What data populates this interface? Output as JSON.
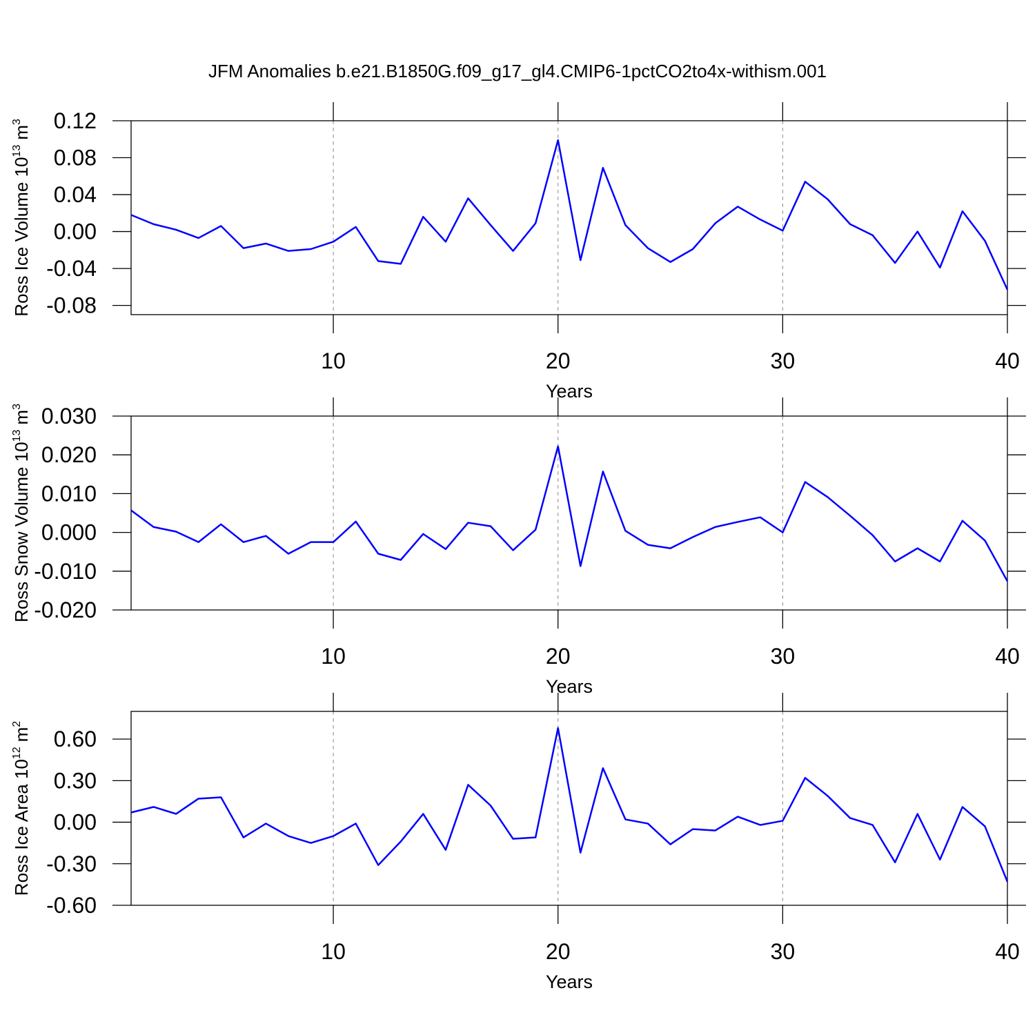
{
  "title": "JFM Anomalies b.e21.B1850G.f09_g17_gl4.CMIP6-1pctCO2to4x-withism.001",
  "chart_data": [
    {
      "type": "line",
      "ylabel": [
        "Ross Ice Volume 10",
        "13",
        "m",
        "3"
      ],
      "xlabel": "Years",
      "x": [
        1,
        2,
        3,
        4,
        5,
        6,
        7,
        8,
        9,
        10,
        11,
        12,
        13,
        14,
        15,
        16,
        17,
        18,
        19,
        20,
        21,
        22,
        23,
        24,
        25,
        26,
        27,
        28,
        29,
        30,
        31,
        32,
        33,
        34,
        35,
        36,
        37,
        38,
        39,
        40
      ],
      "values": [
        0.018,
        0.008,
        0.002,
        -0.007,
        0.006,
        -0.018,
        -0.013,
        -0.021,
        -0.019,
        -0.011,
        0.005,
        -0.032,
        -0.035,
        0.016,
        -0.011,
        0.036,
        0.007,
        -0.021,
        0.009,
        0.099,
        -0.031,
        0.069,
        0.007,
        -0.018,
        -0.033,
        -0.019,
        0.009,
        0.027,
        0.013,
        0.001,
        0.054,
        0.035,
        0.008,
        -0.004,
        -0.034,
        0.0,
        -0.039,
        0.022,
        -0.01,
        -0.063
      ],
      "color": "#0000ff",
      "xlim": [
        1,
        40
      ],
      "xticks": [
        10,
        20,
        30,
        40
      ],
      "xgrid": true,
      "ylim": [
        -0.09,
        0.12
      ],
      "yticks": [
        {
          "value": -0.08,
          "label": "-0.08"
        },
        -0.04,
        {
          "value": 0,
          "label": "0.00"
        },
        0.04,
        0.08,
        0.12
      ]
    },
    {
      "type": "line",
      "ylabel": [
        "Ross Snow Volume 10",
        "13",
        "m",
        "3"
      ],
      "xlabel": "Years",
      "x": [
        1,
        2,
        3,
        4,
        5,
        6,
        7,
        8,
        9,
        10,
        11,
        12,
        13,
        14,
        15,
        16,
        17,
        18,
        19,
        20,
        21,
        22,
        23,
        24,
        25,
        26,
        27,
        28,
        29,
        30,
        31,
        32,
        33,
        34,
        35,
        36,
        37,
        38,
        39,
        40
      ],
      "values": [
        0.0057,
        0.0014,
        0.0002,
        -0.0025,
        0.0021,
        -0.0025,
        -0.0009,
        -0.0055,
        -0.0025,
        -0.0025,
        0.0028,
        -0.0055,
        -0.0071,
        -0.0004,
        -0.0043,
        0.0025,
        0.0016,
        -0.0046,
        0.0007,
        0.0222,
        -0.0087,
        0.0157,
        0.0004,
        -0.0032,
        -0.0041,
        -0.0012,
        0.0014,
        0.0027,
        0.0039,
        0.0,
        0.013,
        0.0091,
        0.0043,
        -0.0007,
        -0.0075,
        -0.0041,
        -0.0075,
        0.003,
        -0.0021,
        -0.0126
      ],
      "color": "#0000ff",
      "xlim": [
        1,
        40
      ],
      "xticks": [
        10,
        20,
        30,
        40
      ],
      "xgrid": true,
      "ylim": [
        -0.02,
        0.03
      ],
      "yticks": [
        {
          "value": -0.02,
          "label": "-0.020"
        },
        {
          "value": -0.01,
          "label": "-0.010"
        },
        {
          "value": 0,
          "label": "0.000"
        },
        {
          "value": 0.01,
          "label": "0.010"
        },
        {
          "value": 0.02,
          "label": "0.020"
        },
        {
          "value": 0.03,
          "label": "0.030"
        }
      ]
    },
    {
      "type": "line",
      "ylabel": [
        "Ross Ice Area 10",
        "12",
        "m",
        "2"
      ],
      "xlabel": "Years",
      "x": [
        1,
        2,
        3,
        4,
        5,
        6,
        7,
        8,
        9,
        10,
        11,
        12,
        13,
        14,
        15,
        16,
        17,
        18,
        19,
        20,
        21,
        22,
        23,
        24,
        25,
        26,
        27,
        28,
        29,
        30,
        31,
        32,
        33,
        34,
        35,
        36,
        37,
        38,
        39,
        40
      ],
      "values": [
        0.07,
        0.11,
        0.06,
        0.17,
        0.18,
        -0.11,
        -0.01,
        -0.1,
        -0.15,
        -0.1,
        -0.01,
        -0.31,
        -0.14,
        0.06,
        -0.2,
        0.27,
        0.12,
        -0.12,
        -0.11,
        0.68,
        -0.22,
        0.39,
        0.02,
        -0.01,
        -0.16,
        -0.05,
        -0.06,
        0.04,
        -0.02,
        0.01,
        0.32,
        0.19,
        0.03,
        -0.02,
        -0.29,
        0.06,
        -0.27,
        0.11,
        -0.03,
        -0.43
      ],
      "color": "#0000ff",
      "xlim": [
        1,
        40
      ],
      "xticks": [
        10,
        20,
        30,
        40
      ],
      "xgrid": true,
      "ylim": [
        -0.6,
        0.8
      ],
      "yticks": [
        {
          "value": -0.6,
          "label": "-0.60"
        },
        {
          "value": -0.3,
          "label": "-0.30"
        },
        {
          "value": 0,
          "label": "0.00"
        },
        {
          "value": 0.3,
          "label": "0.30"
        },
        {
          "value": 0.6,
          "label": "0.60"
        }
      ]
    }
  ]
}
